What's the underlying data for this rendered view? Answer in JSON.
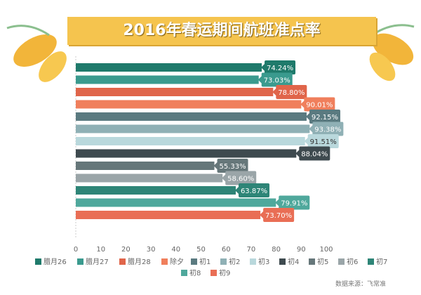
{
  "chart_data": {
    "type": "bar",
    "orientation": "horizontal",
    "title": "2016年春运期间航班准点率",
    "source": "数据来源：飞常准",
    "categories": [
      "腊月26",
      "腊月27",
      "腊月28",
      "除夕",
      "初1",
      "初2",
      "初3",
      "初4",
      "初5",
      "初6",
      "初7",
      "初8",
      "初9"
    ],
    "values": [
      74.24,
      73.03,
      78.8,
      90.01,
      92.15,
      93.38,
      91.51,
      88.04,
      55.33,
      58.6,
      63.87,
      79.91,
      73.7
    ],
    "labels": [
      "74.24%",
      "73.03%",
      "78.80%",
      "90.01%",
      "92.15%",
      "93.38%",
      "91.51%",
      "88.04%",
      "55.33%",
      "58.60%",
      "63.87%",
      "79.91%",
      "73.70%"
    ],
    "colors": [
      "#1f7a6b",
      "#3a9a8e",
      "#e0654a",
      "#f07f5c",
      "#5a7a80",
      "#8fb0b5",
      "#b9d8dc",
      "#3e4a4f",
      "#66777a",
      "#9aa5a8",
      "#2e8577",
      "#4fa89c",
      "#e96e55"
    ],
    "xticks": [
      "0",
      "10",
      "20",
      "30",
      "40",
      "50",
      "60",
      "70",
      "80",
      "90",
      "100"
    ],
    "xlim": [
      0,
      100
    ],
    "legend": "bottom"
  }
}
